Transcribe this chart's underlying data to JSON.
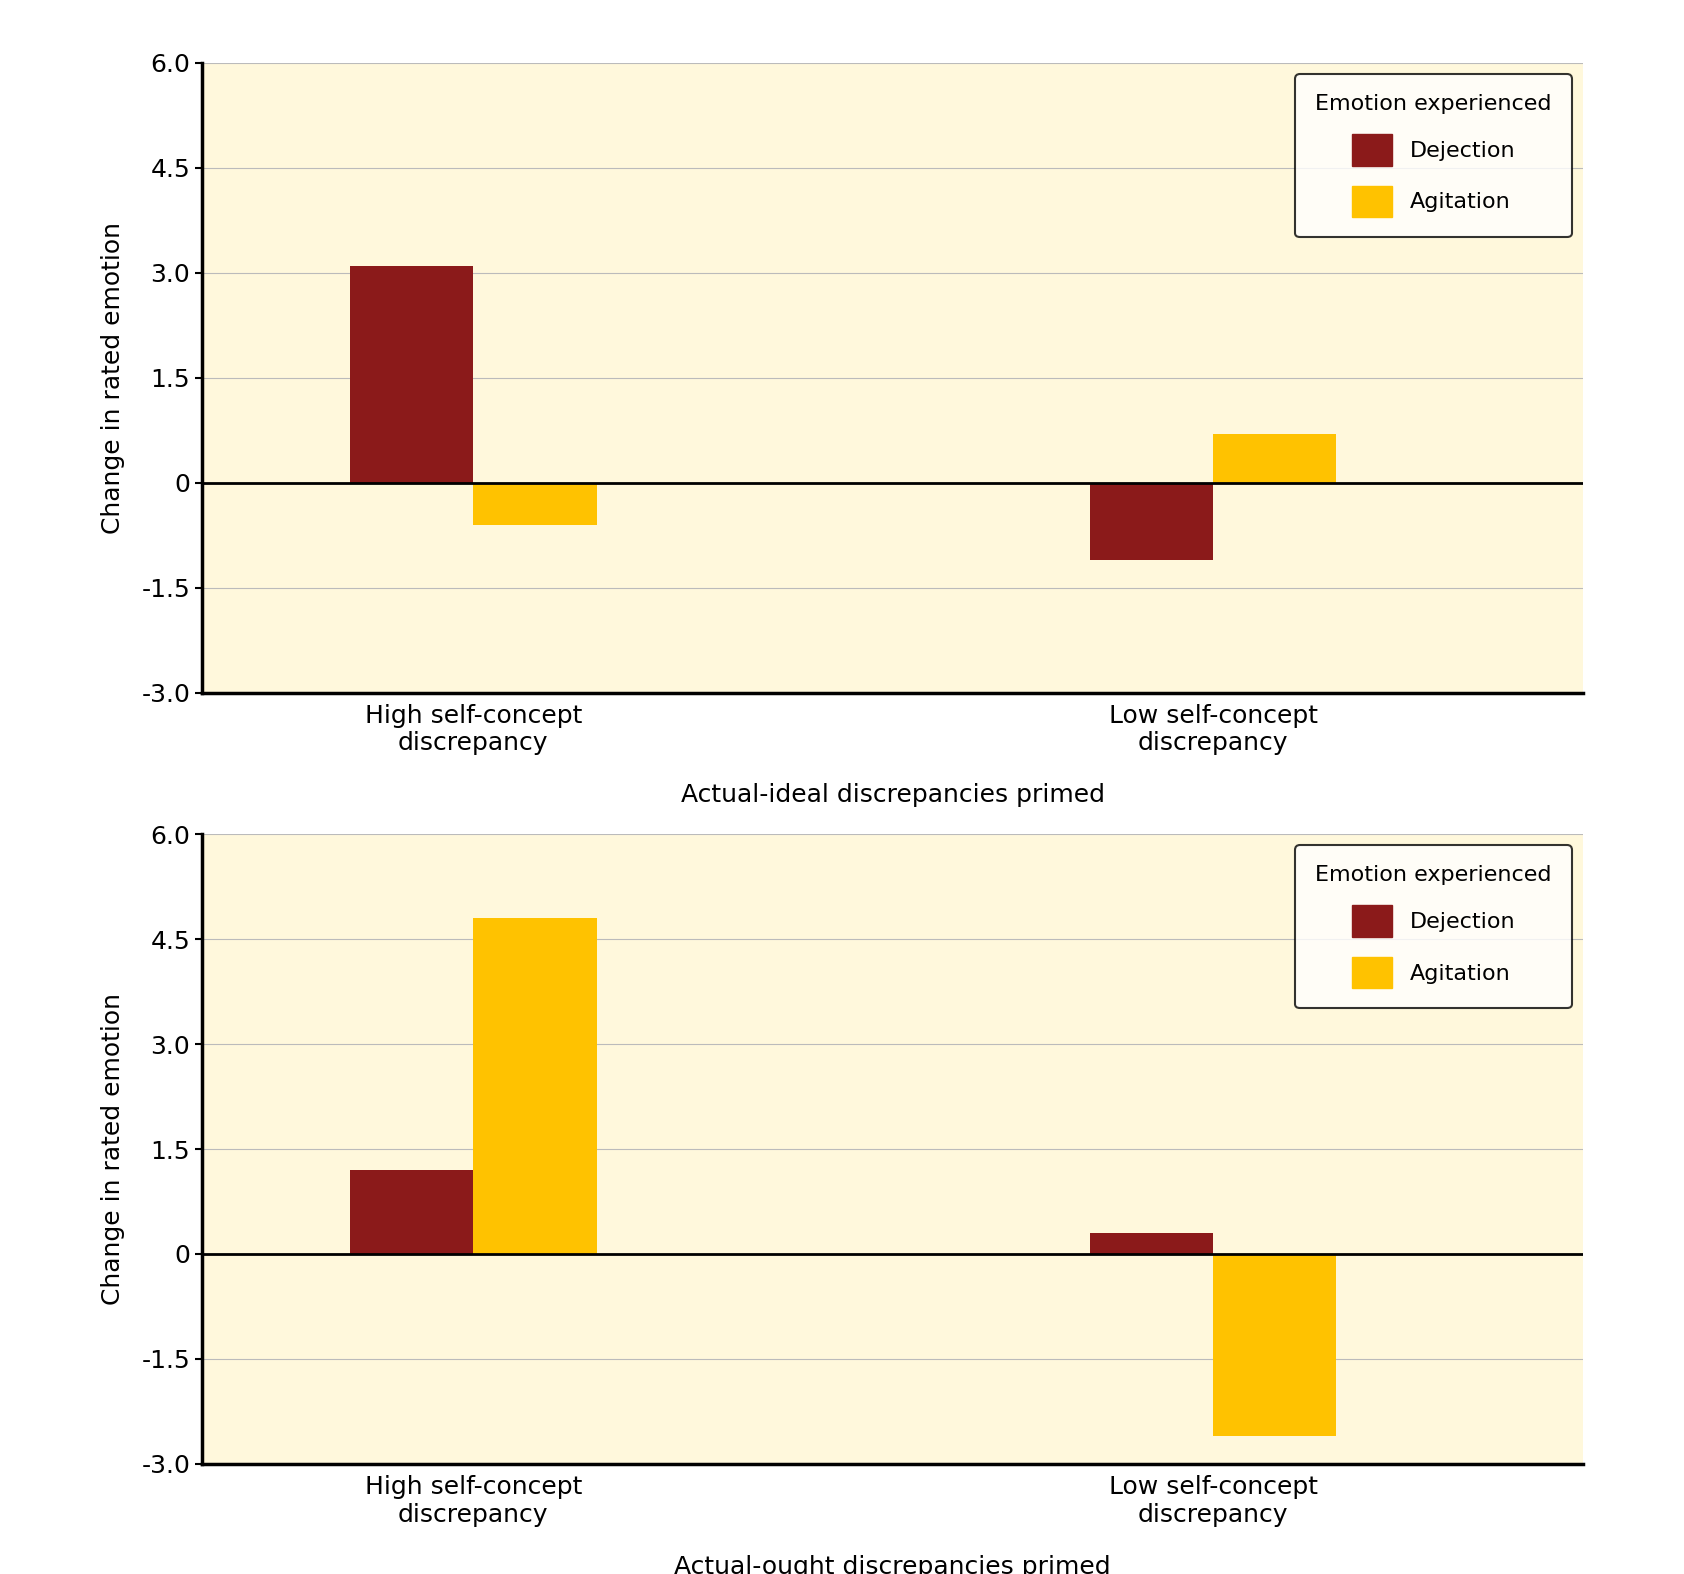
{
  "chart1": {
    "title": "Actual-ideal discrepancies primed",
    "categories": [
      "High self-concept\ndiscrepancy",
      "Low self-concept\ndiscrepancy"
    ],
    "dejection": [
      3.1,
      -1.1
    ],
    "agitation": [
      -0.6,
      0.7
    ],
    "ylabel": "Change in rated emotion"
  },
  "chart2": {
    "title": "Actual-ought discrepancies primed",
    "categories": [
      "High self-concept\ndiscrepancy",
      "Low self-concept\ndiscrepancy"
    ],
    "dejection": [
      1.2,
      0.3
    ],
    "agitation": [
      4.8,
      -2.6
    ],
    "ylabel": "Change in rated emotion"
  },
  "dejection_color": "#8B1A1A",
  "agitation_color": "#FFC200",
  "background_color": "#FFF8DC",
  "fig_background": "#FFFFFF",
  "ylim": [
    -3.0,
    6.0
  ],
  "yticks": [
    -3.0,
    -1.5,
    0,
    1.5,
    3.0,
    4.5,
    6.0
  ],
  "ytick_labels": [
    "-3.0",
    "-1.5",
    "0",
    "1.5",
    "3.0",
    "4.5",
    "6.0"
  ],
  "legend_title": "Emotion experienced",
  "legend_labels": [
    "Dejection",
    "Agitation"
  ],
  "bar_width": 0.25,
  "group_positions": [
    0.75,
    2.25
  ]
}
